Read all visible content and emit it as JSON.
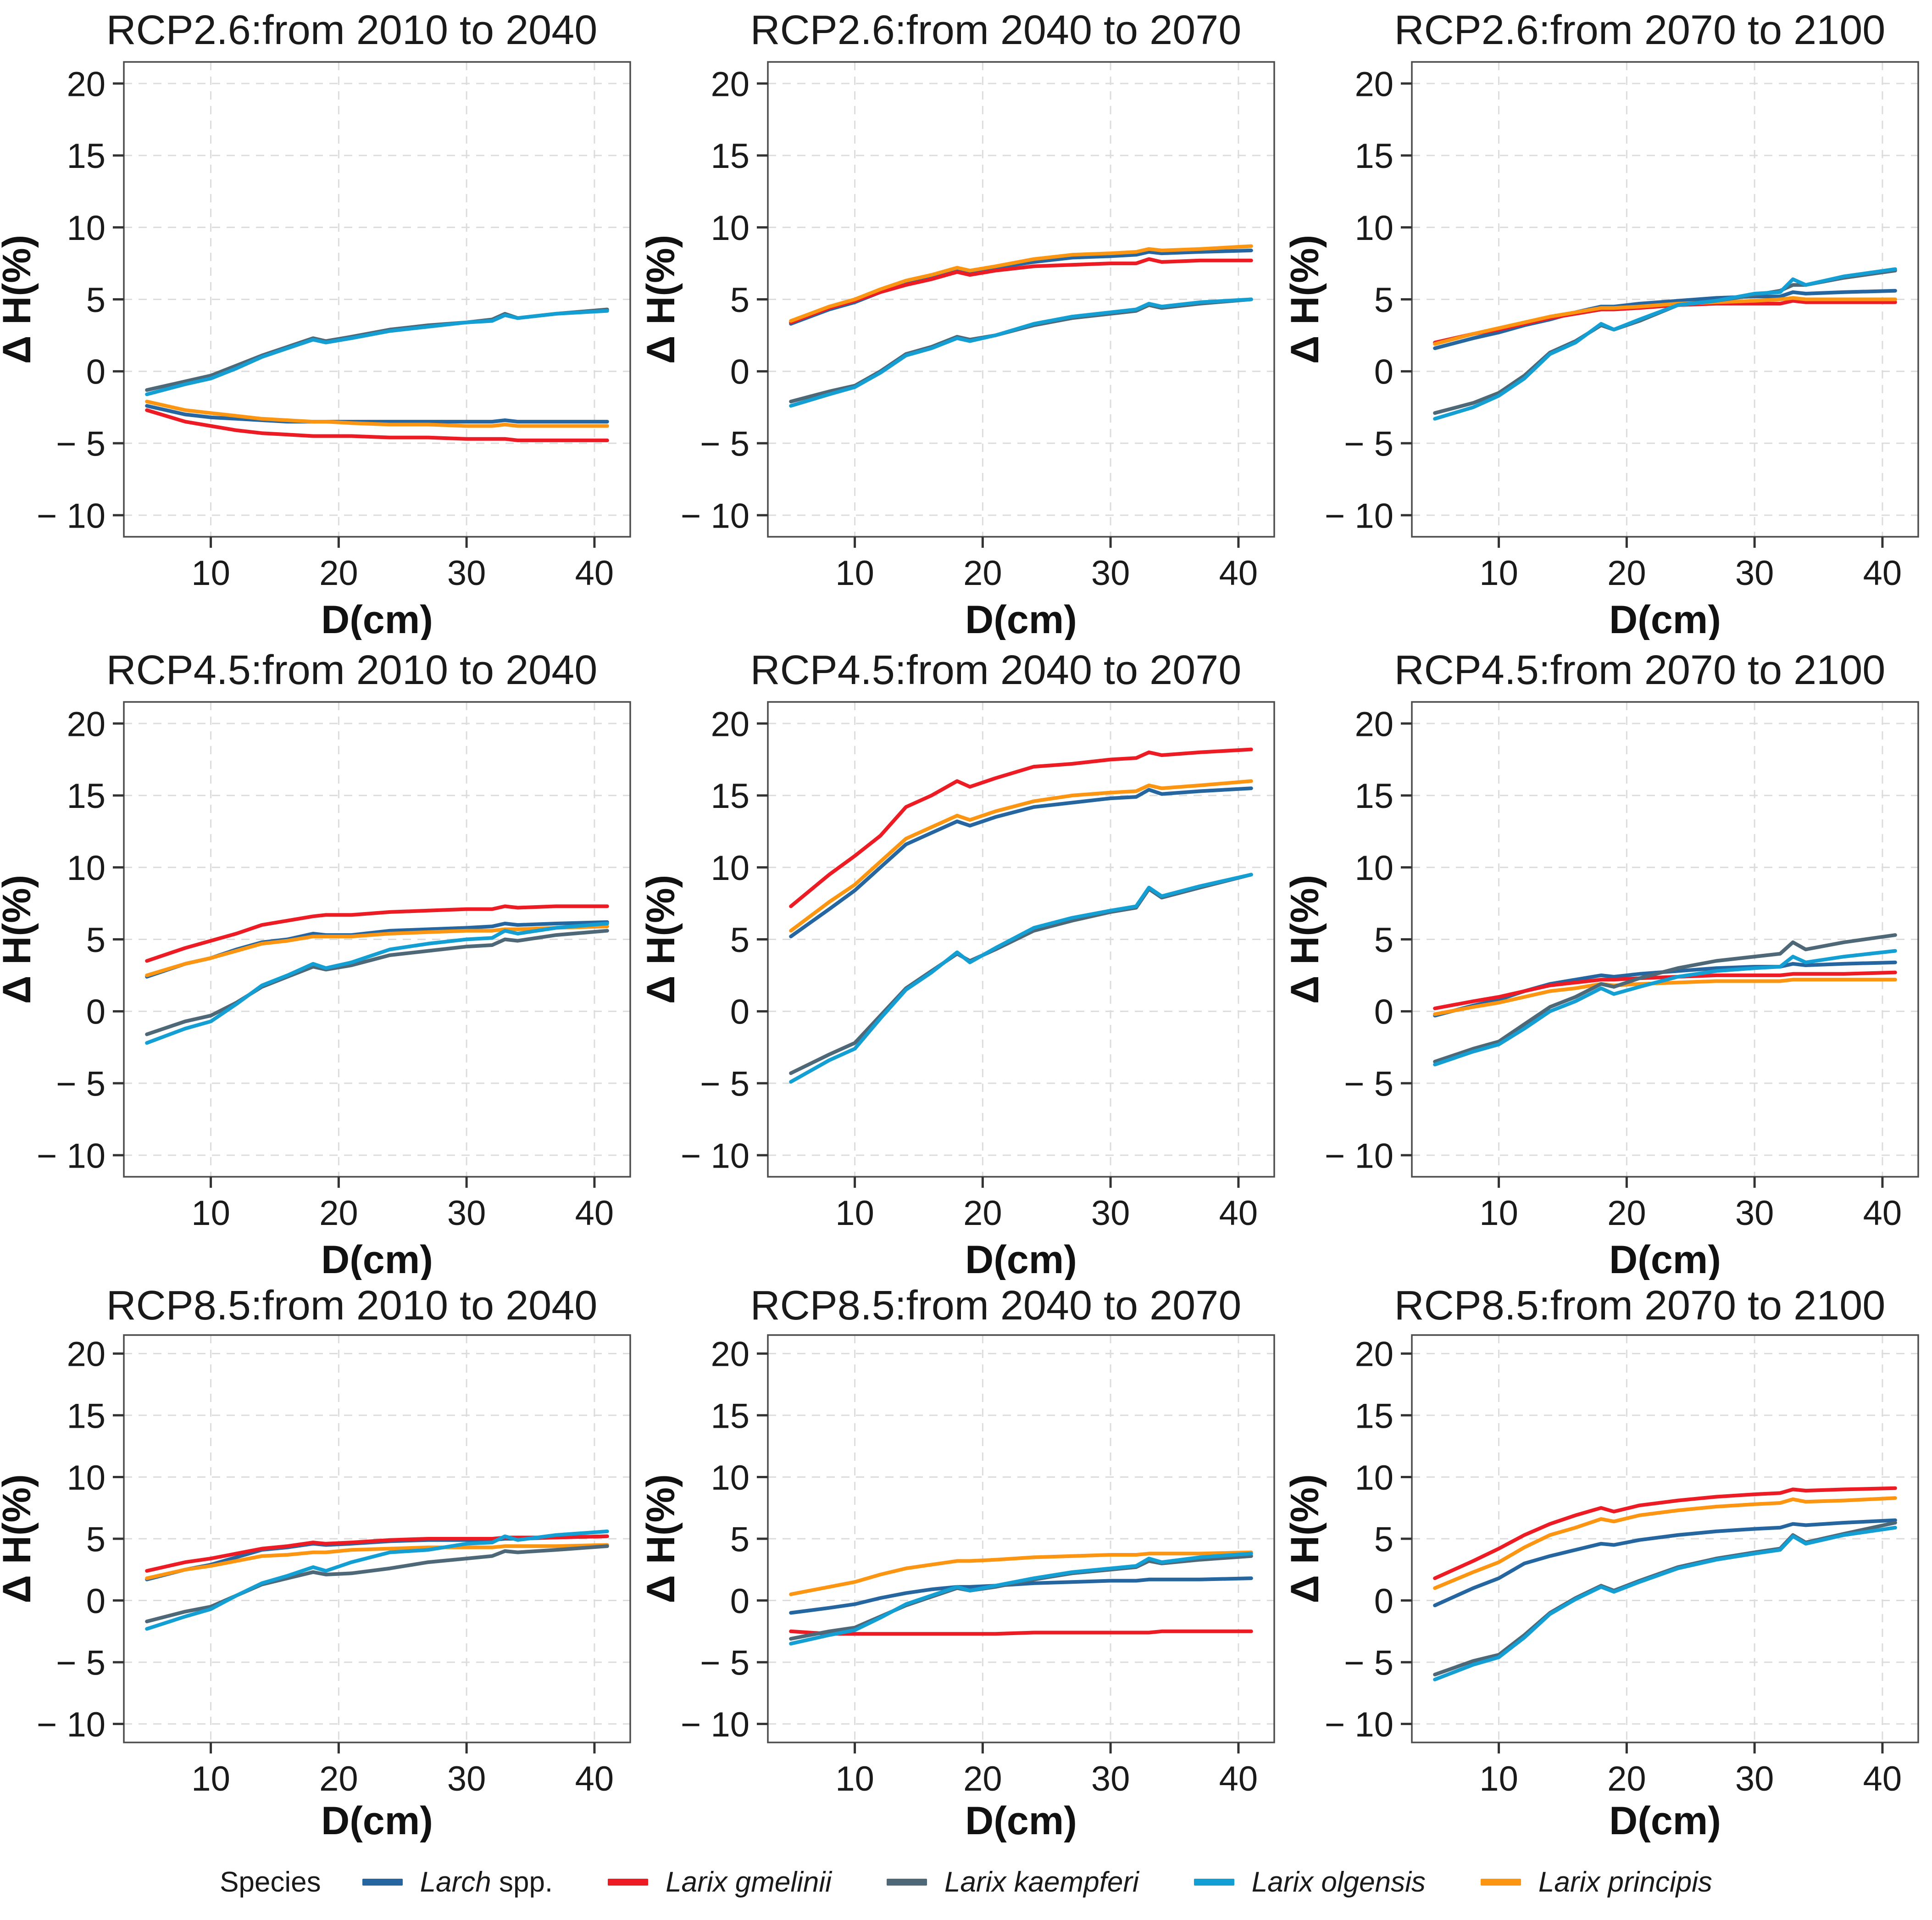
{
  "figure": {
    "legend_title": "Species",
    "species": [
      {
        "id": "larch",
        "label_italic": "Larch",
        "label_regular": " spp.",
        "color": "#2566a0"
      },
      {
        "id": "gmelinii",
        "label_italic": "Larix gmelinii",
        "label_regular": "",
        "color": "#ed1c24"
      },
      {
        "id": "kaempferi",
        "label_italic": "Larix kaempferi",
        "label_regular": "",
        "color": "#4e6878"
      },
      {
        "id": "olgensis",
        "label_italic": "Larix olgensis",
        "label_regular": "",
        "color": "#149fd4"
      },
      {
        "id": "principis",
        "label_italic": "Larix principis",
        "label_regular": "",
        "color": "#fc9612"
      }
    ],
    "draw_order": [
      "larch",
      "gmelinii",
      "principis",
      "kaempferi",
      "olgensis"
    ],
    "axis": {
      "xlabel": "D(cm)",
      "ylabel": "Δ H(%)",
      "xticks": [
        10,
        20,
        30,
        40
      ],
      "yticks": [
        -10,
        -5,
        0,
        5,
        10,
        15,
        20
      ],
      "xlim": [
        3.2,
        42.8
      ],
      "ylim": [
        -11.5,
        21.5
      ],
      "grid_color": "#dcdcdc",
      "border_color": "#4d4d4d",
      "tick_color": "#333333",
      "text_color": "#1a1a1a"
    }
  },
  "chart_data": {
    "type": "line",
    "x_label": "D(cm)",
    "y_label": "Δ H(%)",
    "x": [
      5,
      8,
      10,
      12,
      14,
      16,
      18,
      19,
      21,
      24,
      27,
      30,
      32,
      33,
      34,
      37,
      41
    ],
    "xticks": [
      10,
      20,
      30,
      40
    ],
    "yticks": [
      -10,
      -5,
      0,
      5,
      10,
      15,
      20
    ],
    "xlim": [
      3.2,
      42.8
    ],
    "ylim": [
      -11.5,
      21.5
    ],
    "grid": true,
    "legend": {
      "title": "Species",
      "position": "bottom",
      "entries": [
        "Larch spp.",
        "Larix gmelinii",
        "Larix kaempferi",
        "Larix olgensis",
        "Larix principis"
      ]
    },
    "panels": [
      {
        "title": "RCP2.6:from 2010 to 2040",
        "series": {
          "larch": [
            -2.4,
            -3.0,
            -3.2,
            -3.3,
            -3.4,
            -3.5,
            -3.5,
            -3.5,
            -3.5,
            -3.5,
            -3.5,
            -3.5,
            -3.5,
            -3.4,
            -3.5,
            -3.5,
            -3.5
          ],
          "gmelinii": [
            -2.7,
            -3.5,
            -3.8,
            -4.1,
            -4.3,
            -4.4,
            -4.5,
            -4.5,
            -4.5,
            -4.6,
            -4.6,
            -4.7,
            -4.7,
            -4.7,
            -4.8,
            -4.8,
            -4.8
          ],
          "kaempferi": [
            -1.3,
            -0.7,
            -0.3,
            0.4,
            1.1,
            1.7,
            2.3,
            2.1,
            2.4,
            2.9,
            3.2,
            3.4,
            3.6,
            4.0,
            3.7,
            4.0,
            4.3
          ],
          "olgensis": [
            -1.6,
            -0.9,
            -0.5,
            0.2,
            1.0,
            1.6,
            2.2,
            2.0,
            2.3,
            2.8,
            3.1,
            3.4,
            3.5,
            3.9,
            3.7,
            4.0,
            4.2
          ],
          "principis": [
            -2.1,
            -2.7,
            -2.9,
            -3.1,
            -3.3,
            -3.4,
            -3.5,
            -3.5,
            -3.6,
            -3.7,
            -3.7,
            -3.8,
            -3.8,
            -3.7,
            -3.8,
            -3.8,
            -3.8
          ]
        }
      },
      {
        "title": "RCP2.6:from 2040 to 2070",
        "series": {
          "larch": [
            3.3,
            4.3,
            4.8,
            5.5,
            6.2,
            6.5,
            7.1,
            6.9,
            7.2,
            7.6,
            7.9,
            8.0,
            8.1,
            8.3,
            8.2,
            8.3,
            8.4
          ],
          "gmelinii": [
            3.4,
            4.4,
            4.9,
            5.5,
            6.0,
            6.4,
            6.9,
            6.7,
            7.0,
            7.3,
            7.4,
            7.5,
            7.5,
            7.8,
            7.6,
            7.7,
            7.7
          ],
          "kaempferi": [
            -2.1,
            -1.4,
            -1.0,
            0.0,
            1.2,
            1.7,
            2.4,
            2.2,
            2.5,
            3.2,
            3.7,
            4.0,
            4.2,
            4.6,
            4.4,
            4.7,
            5.0
          ],
          "olgensis": [
            -2.4,
            -1.6,
            -1.1,
            -0.1,
            1.1,
            1.6,
            2.3,
            2.1,
            2.5,
            3.3,
            3.8,
            4.1,
            4.3,
            4.7,
            4.5,
            4.8,
            5.0
          ],
          "principis": [
            3.5,
            4.5,
            5.0,
            5.7,
            6.3,
            6.7,
            7.2,
            7.0,
            7.3,
            7.8,
            8.1,
            8.2,
            8.3,
            8.5,
            8.4,
            8.5,
            8.7
          ]
        }
      },
      {
        "title": "RCP2.6:from 2070 to 2100",
        "series": {
          "larch": [
            1.6,
            2.3,
            2.7,
            3.2,
            3.6,
            4.1,
            4.5,
            4.5,
            4.7,
            4.9,
            5.1,
            5.2,
            5.2,
            5.5,
            5.4,
            5.5,
            5.6
          ],
          "gmelinii": [
            2.0,
            2.6,
            2.9,
            3.3,
            3.7,
            4.0,
            4.3,
            4.3,
            4.4,
            4.6,
            4.7,
            4.7,
            4.7,
            4.9,
            4.8,
            4.8,
            4.8
          ],
          "kaempferi": [
            -2.9,
            -2.2,
            -1.5,
            -0.3,
            1.3,
            2.1,
            3.2,
            2.9,
            3.5,
            4.6,
            4.9,
            5.3,
            5.6,
            6.0,
            6.0,
            6.5,
            7.0
          ],
          "olgensis": [
            -3.3,
            -2.5,
            -1.7,
            -0.5,
            1.2,
            2.0,
            3.3,
            2.9,
            3.6,
            4.6,
            4.9,
            5.4,
            5.5,
            6.4,
            6.0,
            6.6,
            7.1
          ],
          "principis": [
            1.9,
            2.6,
            3.0,
            3.4,
            3.8,
            4.1,
            4.4,
            4.4,
            4.5,
            4.7,
            4.8,
            4.9,
            5.0,
            5.1,
            5.0,
            5.0,
            5.0
          ]
        }
      },
      {
        "title": "RCP4.5:from 2010 to 2040",
        "series": {
          "larch": [
            2.4,
            3.3,
            3.7,
            4.3,
            4.8,
            5.0,
            5.4,
            5.3,
            5.3,
            5.6,
            5.7,
            5.8,
            5.9,
            6.1,
            6.0,
            6.1,
            6.2
          ],
          "gmelinii": [
            3.5,
            4.4,
            4.9,
            5.4,
            6.0,
            6.3,
            6.6,
            6.7,
            6.7,
            6.9,
            7.0,
            7.1,
            7.1,
            7.3,
            7.2,
            7.3,
            7.3
          ],
          "kaempferi": [
            -1.6,
            -0.7,
            -0.3,
            0.6,
            1.7,
            2.4,
            3.1,
            2.9,
            3.2,
            3.9,
            4.2,
            4.5,
            4.6,
            5.0,
            4.9,
            5.3,
            5.6
          ],
          "olgensis": [
            -2.2,
            -1.2,
            -0.7,
            0.5,
            1.8,
            2.5,
            3.3,
            3.0,
            3.4,
            4.3,
            4.7,
            5.0,
            5.1,
            5.6,
            5.4,
            5.8,
            6.1
          ],
          "principis": [
            2.5,
            3.3,
            3.7,
            4.2,
            4.7,
            4.9,
            5.2,
            5.2,
            5.2,
            5.4,
            5.5,
            5.6,
            5.6,
            5.7,
            5.7,
            5.8,
            5.9
          ]
        }
      },
      {
        "title": "RCP4.5:from 2040 to 2070",
        "series": {
          "larch": [
            5.2,
            7.1,
            8.4,
            10.0,
            11.6,
            12.4,
            13.2,
            12.9,
            13.5,
            14.2,
            14.5,
            14.8,
            14.9,
            15.4,
            15.1,
            15.3,
            15.5
          ],
          "gmelinii": [
            7.3,
            9.5,
            10.8,
            12.2,
            14.2,
            15.0,
            16.0,
            15.6,
            16.2,
            17.0,
            17.2,
            17.5,
            17.6,
            18.0,
            17.8,
            18.0,
            18.2
          ],
          "kaempferi": [
            -4.3,
            -3.0,
            -2.2,
            -0.3,
            1.6,
            2.8,
            4.0,
            3.5,
            4.3,
            5.6,
            6.3,
            6.9,
            7.2,
            8.5,
            7.9,
            8.6,
            9.5
          ],
          "olgensis": [
            -4.9,
            -3.4,
            -2.6,
            -0.5,
            1.5,
            2.7,
            4.1,
            3.4,
            4.4,
            5.8,
            6.5,
            7.0,
            7.3,
            8.6,
            8.0,
            8.7,
            9.5
          ],
          "principis": [
            5.6,
            7.6,
            8.8,
            10.4,
            12.0,
            12.8,
            13.6,
            13.3,
            13.9,
            14.6,
            15.0,
            15.2,
            15.3,
            15.7,
            15.5,
            15.7,
            16.0
          ]
        }
      },
      {
        "title": "RCP4.5:from 2070 to 2100",
        "series": {
          "larch": [
            -0.3,
            0.4,
            0.8,
            1.4,
            1.9,
            2.2,
            2.5,
            2.4,
            2.6,
            2.8,
            3.0,
            3.1,
            3.1,
            3.3,
            3.2,
            3.3,
            3.4
          ],
          "gmelinii": [
            0.2,
            0.7,
            1.0,
            1.4,
            1.8,
            2.0,
            2.2,
            2.2,
            2.3,
            2.4,
            2.5,
            2.5,
            2.5,
            2.6,
            2.6,
            2.6,
            2.7
          ],
          "kaempferi": [
            -3.5,
            -2.6,
            -2.1,
            -0.9,
            0.3,
            1.0,
            1.9,
            1.7,
            2.3,
            3.0,
            3.5,
            3.8,
            4.0,
            4.8,
            4.3,
            4.8,
            5.3
          ],
          "olgensis": [
            -3.7,
            -2.8,
            -2.3,
            -1.2,
            0.0,
            0.7,
            1.6,
            1.2,
            1.7,
            2.4,
            2.8,
            3.0,
            3.1,
            3.8,
            3.4,
            3.8,
            4.2
          ],
          "principis": [
            -0.2,
            0.3,
            0.6,
            1.0,
            1.4,
            1.6,
            1.9,
            1.8,
            1.9,
            2.0,
            2.1,
            2.1,
            2.1,
            2.2,
            2.2,
            2.2,
            2.2
          ]
        }
      },
      {
        "title": "RCP8.5:from 2010 to 2040",
        "series": {
          "larch": [
            1.7,
            2.5,
            2.9,
            3.5,
            4.1,
            4.3,
            4.6,
            4.5,
            4.6,
            4.8,
            4.9,
            4.9,
            4.9,
            5.0,
            5.0,
            5.1,
            5.2
          ],
          "gmelinii": [
            2.4,
            3.1,
            3.4,
            3.8,
            4.2,
            4.4,
            4.7,
            4.6,
            4.7,
            4.9,
            5.0,
            5.0,
            5.0,
            5.1,
            5.1,
            5.1,
            5.2
          ],
          "kaempferi": [
            -1.7,
            -0.9,
            -0.5,
            0.4,
            1.3,
            1.8,
            2.3,
            2.1,
            2.2,
            2.6,
            3.1,
            3.4,
            3.6,
            4.0,
            3.9,
            4.1,
            4.4
          ],
          "olgensis": [
            -2.3,
            -1.3,
            -0.7,
            0.4,
            1.4,
            2.0,
            2.7,
            2.4,
            3.1,
            3.9,
            4.1,
            4.6,
            4.7,
            5.2,
            4.9,
            5.3,
            5.6
          ],
          "principis": [
            1.8,
            2.5,
            2.8,
            3.2,
            3.6,
            3.7,
            3.9,
            3.9,
            4.1,
            4.2,
            4.3,
            4.3,
            4.3,
            4.4,
            4.4,
            4.4,
            4.5
          ]
        }
      },
      {
        "title": "RCP8.5:from 2040 to 2070",
        "series": {
          "larch": [
            -1.0,
            -0.6,
            -0.3,
            0.2,
            0.6,
            0.9,
            1.1,
            1.1,
            1.2,
            1.4,
            1.5,
            1.6,
            1.6,
            1.7,
            1.7,
            1.7,
            1.8
          ],
          "gmelinii": [
            -2.5,
            -2.7,
            -2.7,
            -2.7,
            -2.7,
            -2.7,
            -2.7,
            -2.7,
            -2.7,
            -2.6,
            -2.6,
            -2.6,
            -2.6,
            -2.6,
            -2.5,
            -2.5,
            -2.5
          ],
          "kaempferi": [
            -3.1,
            -2.5,
            -2.2,
            -1.3,
            -0.4,
            0.3,
            1.0,
            0.8,
            1.1,
            1.7,
            2.2,
            2.5,
            2.7,
            3.2,
            3.0,
            3.3,
            3.6
          ],
          "olgensis": [
            -3.5,
            -2.8,
            -2.4,
            -1.4,
            -0.3,
            0.4,
            1.1,
            0.8,
            1.2,
            1.8,
            2.3,
            2.6,
            2.8,
            3.4,
            3.1,
            3.5,
            3.8
          ],
          "principis": [
            0.5,
            1.1,
            1.5,
            2.1,
            2.6,
            2.9,
            3.2,
            3.2,
            3.3,
            3.5,
            3.6,
            3.7,
            3.7,
            3.8,
            3.8,
            3.8,
            3.9
          ]
        }
      },
      {
        "title": "RCP8.5:from 2070 to 2100",
        "series": {
          "larch": [
            -0.4,
            1.0,
            1.8,
            3.0,
            3.6,
            4.1,
            4.6,
            4.5,
            4.9,
            5.3,
            5.6,
            5.8,
            5.9,
            6.2,
            6.1,
            6.3,
            6.5
          ],
          "gmelinii": [
            1.8,
            3.2,
            4.2,
            5.3,
            6.2,
            6.9,
            7.5,
            7.2,
            7.7,
            8.1,
            8.4,
            8.6,
            8.7,
            9.0,
            8.9,
            9.0,
            9.1
          ],
          "kaempferi": [
            -6.0,
            -4.9,
            -4.4,
            -2.8,
            -1.0,
            0.2,
            1.2,
            0.8,
            1.6,
            2.7,
            3.4,
            3.9,
            4.2,
            5.3,
            4.7,
            5.4,
            6.3
          ],
          "olgensis": [
            -6.4,
            -5.2,
            -4.6,
            -3.0,
            -1.1,
            0.1,
            1.1,
            0.7,
            1.5,
            2.6,
            3.3,
            3.8,
            4.1,
            5.2,
            4.6,
            5.3,
            5.9
          ],
          "principis": [
            1.0,
            2.3,
            3.1,
            4.3,
            5.3,
            5.9,
            6.6,
            6.4,
            6.9,
            7.3,
            7.6,
            7.8,
            7.9,
            8.2,
            8.0,
            8.1,
            8.3
          ]
        }
      }
    ]
  }
}
